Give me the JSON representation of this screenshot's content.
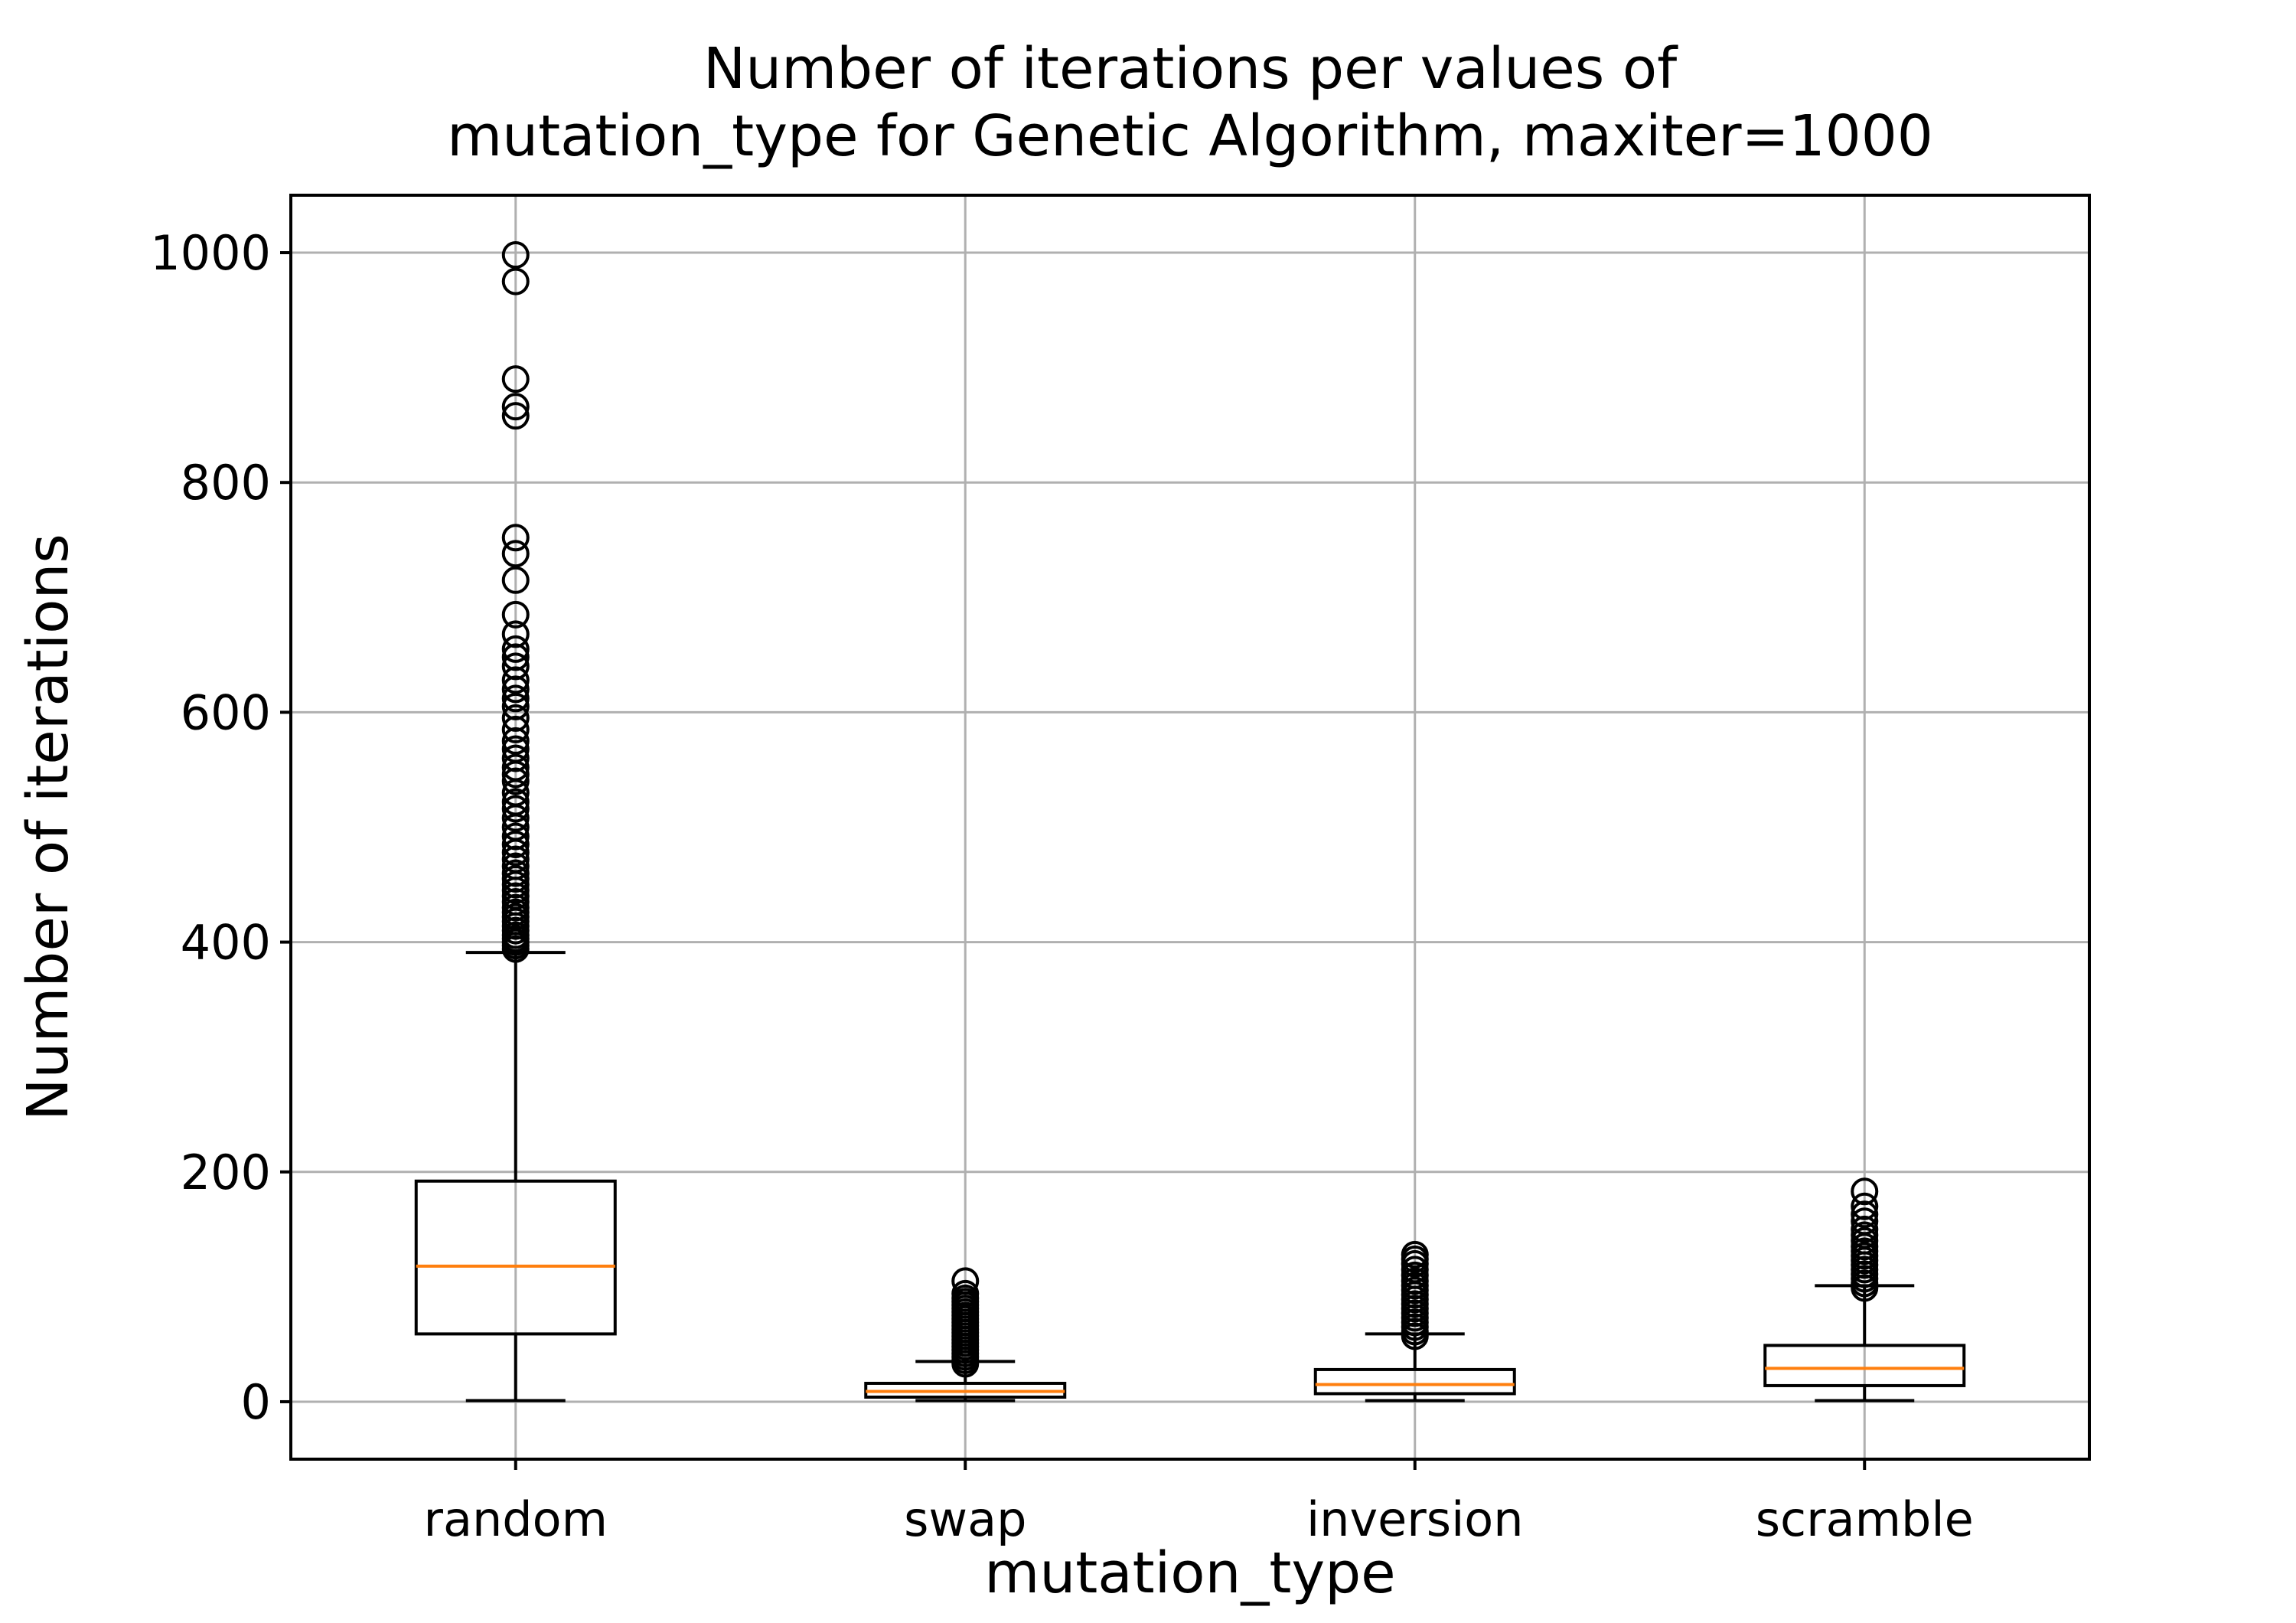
{
  "chart_data": {
    "type": "box",
    "title": "Number of iterations per values of\nmutation_type for Genetic Algorithm, maxiter=1000",
    "xlabel": "mutation_type",
    "ylabel": "Number of iterations",
    "ylim": [
      -50,
      1050
    ],
    "yticks": [
      0,
      200,
      400,
      600,
      800,
      1000
    ],
    "grid": true,
    "colors": {
      "box": "#000000",
      "median": "#ff7f0e",
      "grid": "#b0b0b0"
    },
    "categories": [
      "random",
      "swap",
      "inversion",
      "scramble"
    ],
    "boxes": [
      {
        "category": "random",
        "whisker_low": 1,
        "q1": 59,
        "median": 118,
        "q3": 192,
        "whisker_high": 391,
        "outliers": [
          394,
          397,
          400,
          403,
          406,
          410,
          414,
          418,
          422,
          426,
          430,
          435,
          440,
          445,
          450,
          455,
          460,
          466,
          472,
          478,
          485,
          492,
          500,
          508,
          516,
          522,
          530,
          540,
          546,
          552,
          560,
          568,
          575,
          585,
          595,
          605,
          612,
          620,
          628,
          640,
          648,
          655,
          668,
          685,
          715,
          738,
          752,
          858,
          866,
          890,
          975,
          998
        ]
      },
      {
        "category": "swap",
        "whisker_low": 1,
        "q1": 4,
        "median": 9,
        "q3": 16,
        "whisker_high": 35,
        "outliers": [
          33,
          36,
          39,
          42,
          45,
          48,
          51,
          54,
          57,
          60,
          63,
          66,
          69,
          72,
          75,
          78,
          81,
          84,
          87,
          90,
          94,
          105
        ]
      },
      {
        "category": "inversion",
        "whisker_low": 1,
        "q1": 7,
        "median": 15,
        "q3": 28,
        "whisker_high": 59,
        "outliers": [
          57,
          61,
          65,
          69,
          73,
          77,
          81,
          85,
          89,
          93,
          97,
          101,
          105,
          110,
          115,
          120,
          124,
          128
        ]
      },
      {
        "category": "scramble",
        "whisker_low": 1,
        "q1": 14,
        "median": 29,
        "q3": 49,
        "whisker_high": 101,
        "outliers": [
          99,
          103,
          107,
          111,
          115,
          119,
          123,
          127,
          131,
          135,
          140,
          145,
          150,
          157,
          163,
          170,
          183
        ]
      }
    ]
  }
}
